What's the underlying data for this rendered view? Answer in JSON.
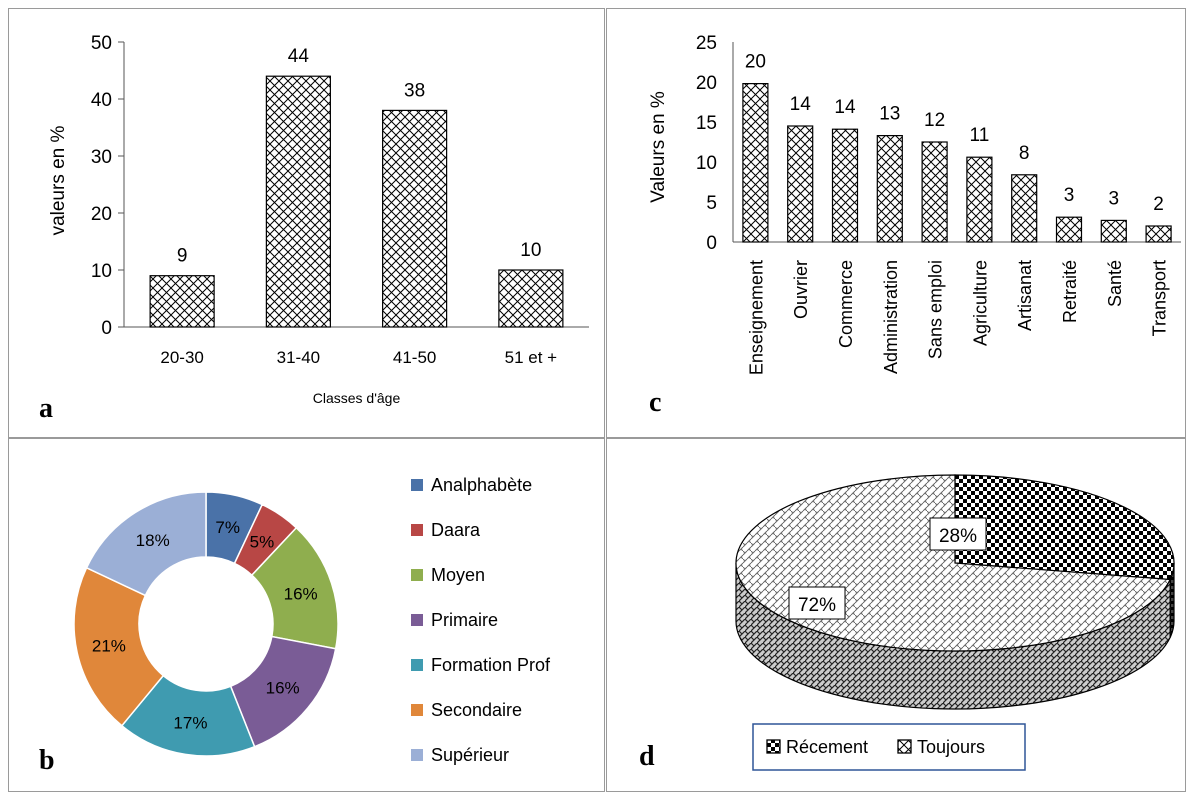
{
  "panels": {
    "a": {
      "letter": "a"
    },
    "b": {
      "letter": "b"
    },
    "c": {
      "letter": "c"
    },
    "d": {
      "letter": "d"
    }
  },
  "chart_data": [
    {
      "id": "a",
      "type": "bar",
      "categories": [
        "20-30",
        "31-40",
        "41-50",
        "51 et +"
      ],
      "values": [
        9,
        44,
        38,
        10
      ],
      "data_labels": [
        "9",
        "44",
        "38",
        "10"
      ],
      "xlabel": "Classes d'âge",
      "ylabel": "valeurs en %",
      "ylim": [
        0,
        50
      ],
      "yticks": [
        "0",
        "10",
        "20",
        "30",
        "40",
        "50"
      ],
      "fill_pattern": "crosshatch",
      "grid": false
    },
    {
      "id": "c",
      "type": "bar",
      "categories": [
        "Enseignement",
        "Ouvrier",
        "Commerce",
        "Administration",
        "Sans emploi",
        "Agriculture",
        "Artisanat",
        "Retraité",
        "Santé",
        "Transport"
      ],
      "values": [
        19.8,
        14.5,
        14.1,
        13.3,
        12.5,
        10.6,
        8.4,
        3.1,
        2.7,
        2.0
      ],
      "data_labels": [
        "20",
        "14",
        "14",
        "13",
        "12",
        "11",
        "8",
        "3",
        "3",
        "2"
      ],
      "ylabel": "Valeurs en %",
      "ylim": [
        0,
        25
      ],
      "yticks": [
        "0",
        "5",
        "10",
        "15",
        "20",
        "25"
      ],
      "fill_pattern": "crosshatch",
      "grid": false
    },
    {
      "id": "b",
      "type": "pie",
      "variant": "donut",
      "legend_position": "right",
      "slices": [
        {
          "name": "Analphabète",
          "value": 7,
          "label": "7%",
          "color": "#4a72a8"
        },
        {
          "name": "Daara",
          "value": 5,
          "label": "5%",
          "color": "#b84745"
        },
        {
          "name": "Moyen",
          "value": 16,
          "label": "16%",
          "color": "#8fae4e"
        },
        {
          "name": "Primaire",
          "value": 16,
          "label": "16%",
          "color": "#7a5c96"
        },
        {
          "name": "Formation Prof",
          "value": 17,
          "label": "17%",
          "color": "#3f9bb0"
        },
        {
          "name": "Secondaire",
          "value": 21,
          "label": "21%",
          "color": "#e0873a"
        },
        {
          "name": "Supérieur",
          "value": 18,
          "label": "18%",
          "color": "#9bafd6"
        }
      ]
    },
    {
      "id": "d",
      "type": "pie",
      "variant": "3d",
      "legend_position": "bottom",
      "slices": [
        {
          "name": "Récement",
          "value": 28,
          "label": "28%",
          "pattern": "checker"
        },
        {
          "name": "Toujours",
          "value": 72,
          "label": "72%",
          "pattern": "weave"
        }
      ]
    }
  ]
}
